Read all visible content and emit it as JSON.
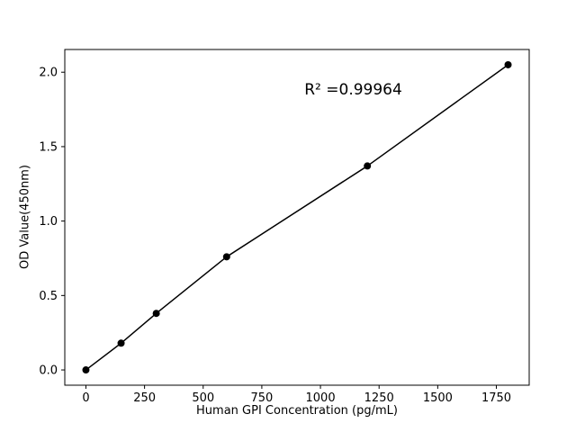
{
  "chart_data": {
    "type": "scatter",
    "title": "",
    "xlabel": "Human GPI Concentration (pg/mL)",
    "ylabel": "OD Value(450nm)",
    "x": [
      0,
      150,
      300,
      600,
      1200,
      1800
    ],
    "y": [
      0.0,
      0.18,
      0.38,
      0.76,
      1.37,
      2.05
    ],
    "fit_line": true,
    "annotation": {
      "text": "R² =0.99964",
      "x": 1140,
      "y": 1.88
    },
    "xlim": [
      -90,
      1890
    ],
    "ylim": [
      -0.1025,
      2.1525
    ],
    "xticks": [
      0,
      250,
      500,
      750,
      1000,
      1250,
      1500,
      1750
    ],
    "xtick_labels": [
      "0",
      "250",
      "500",
      "750",
      "1000",
      "1250",
      "1500",
      "1750"
    ],
    "yticks": [
      0.0,
      0.5,
      1.0,
      1.5,
      2.0
    ],
    "ytick_labels": [
      "0.0",
      "0.5",
      "1.0",
      "1.5",
      "2.0"
    ],
    "marker_color": "#000000",
    "line_color": "#000000",
    "axis_color": "#000000",
    "background": "#ffffff",
    "grid": false,
    "legend": "none"
  }
}
